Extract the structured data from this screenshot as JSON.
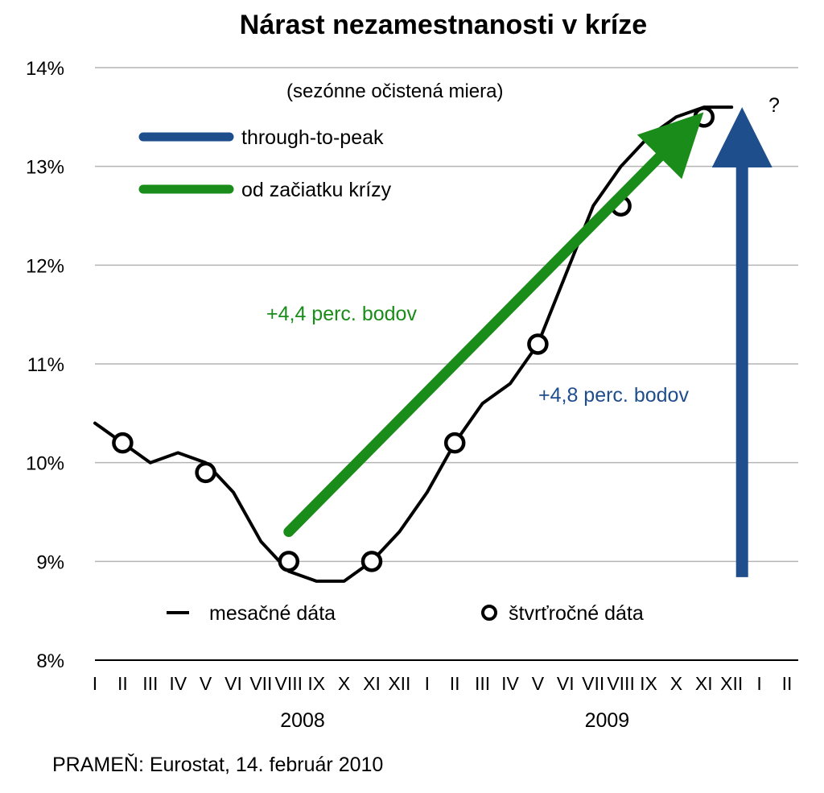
{
  "chart_data": {
    "type": "line",
    "title": "Nárast nezamestnanosti v kríze",
    "subtitle": "(sezónne očistená miera)",
    "source": "PRAMEŇ: Eurostat, 14. február 2010",
    "ylim": [
      8,
      14
    ],
    "yticks": [
      "8%",
      "9%",
      "10%",
      "11%",
      "12%",
      "13%",
      "14%"
    ],
    "grid": true,
    "month_labels": [
      "I",
      "II",
      "III",
      "IV",
      "V",
      "VI",
      "VII",
      "VIII",
      "IX",
      "X",
      "XI",
      "XII",
      "I",
      "II",
      "III",
      "IV",
      "V",
      "VI",
      "VII",
      "VIII",
      "IX",
      "X",
      "XI",
      "XII",
      "I",
      "II"
    ],
    "years": [
      "2008",
      "2009"
    ],
    "series": [
      {
        "name": "mesačné dáta",
        "color": "#000000",
        "x": [
          0,
          1,
          2,
          3,
          4,
          5,
          6,
          7,
          8,
          9,
          10,
          11,
          12,
          13,
          14,
          15,
          16,
          17,
          18,
          19,
          20,
          21,
          22,
          23,
          24,
          25
        ],
        "values": [
          10.4,
          10.2,
          10.0,
          10.1,
          10.0,
          9.7,
          9.2,
          8.9,
          8.8,
          8.8,
          9.0,
          9.3,
          9.7,
          10.2,
          10.6,
          10.8,
          11.2,
          11.9,
          12.6,
          13.0,
          13.3,
          13.5,
          13.6,
          13.6,
          null,
          null
        ]
      },
      {
        "name": "štvrťročné dáta",
        "color": "#000000",
        "x": [
          1,
          4,
          7,
          10,
          13,
          16,
          19,
          22
        ],
        "values": [
          10.2,
          9.9,
          9.0,
          9.0,
          10.2,
          11.2,
          12.6,
          13.5
        ]
      }
    ],
    "legend_top": [
      {
        "label": "through-to-peak",
        "color": "#1f4e8c"
      },
      {
        "label": "od začiatku krízy",
        "color": "#1a8c1a"
      }
    ],
    "legend_bottom": [
      {
        "label": "mesačné dáta"
      },
      {
        "label": "štvrťročné dáta"
      }
    ],
    "annotations": [
      {
        "text": "+4,4 perc. bodov",
        "color": "#1a8c1a",
        "from": [
          7,
          9.3
        ],
        "to": [
          22,
          13.5
        ]
      },
      {
        "text": "+4,8 perc. bodov",
        "color": "#1f4e8c",
        "from": [
          23,
          8.8
        ],
        "to": [
          23,
          13.6
        ]
      },
      {
        "text": "?",
        "color": "#000000"
      }
    ]
  }
}
